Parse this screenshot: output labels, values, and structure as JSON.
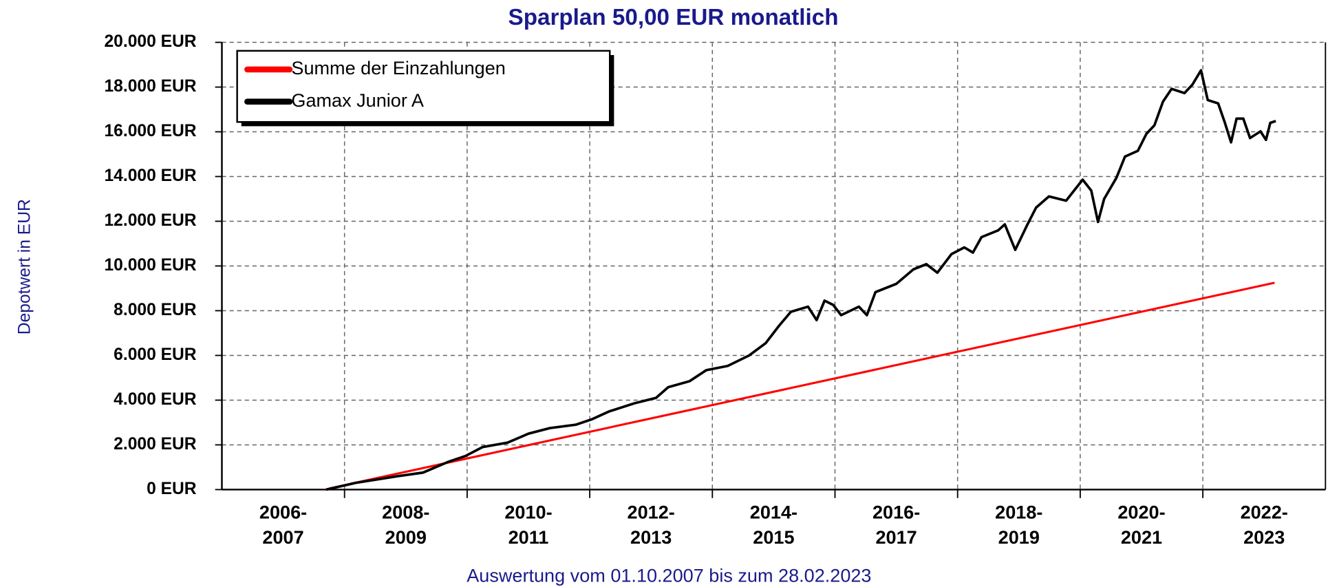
{
  "chart_data": {
    "type": "line",
    "title": "Sparplan 50,00 EUR monatlich",
    "ylabel": "Depotwert in EUR",
    "xlabel": "Auswertung vom 01.10.2007 bis zum 28.02.2023",
    "xlim": [
      2006,
      2024
    ],
    "ylim": [
      0,
      20000
    ],
    "yticks": [
      {
        "value": 0,
        "label": "0 EUR"
      },
      {
        "value": 2000,
        "label": "2.000 EUR"
      },
      {
        "value": 4000,
        "label": "4.000 EUR"
      },
      {
        "value": 6000,
        "label": "6.000 EUR"
      },
      {
        "value": 8000,
        "label": "8.000 EUR"
      },
      {
        "value": 10000,
        "label": "10.000 EUR"
      },
      {
        "value": 12000,
        "label": "12.000 EUR"
      },
      {
        "value": 14000,
        "label": "14.000 EUR"
      },
      {
        "value": 16000,
        "label": "16.000 EUR"
      },
      {
        "value": 18000,
        "label": "18.000 EUR"
      },
      {
        "value": 20000,
        "label": "20.000 EUR"
      }
    ],
    "xticks": [
      {
        "value": 2007,
        "label": "2006-\n2007"
      },
      {
        "value": 2009,
        "label": "2008-\n2009"
      },
      {
        "value": 2011,
        "label": "2010-\n2011"
      },
      {
        "value": 2013,
        "label": "2012-\n2013"
      },
      {
        "value": 2015,
        "label": "2014-\n2015"
      },
      {
        "value": 2017,
        "label": "2016-\n2017"
      },
      {
        "value": 2019,
        "label": "2018-\n2019"
      },
      {
        "value": 2021,
        "label": "2020-\n2021"
      },
      {
        "value": 2023,
        "label": "2022-\n2023"
      }
    ],
    "xgrid": [
      2008,
      2010,
      2012,
      2014,
      2016,
      2018,
      2020,
      2022
    ],
    "grid": true,
    "legend": "upper left",
    "series": [
      {
        "name": "Summe der Einzahlungen",
        "color": "#ff0000",
        "x": [
          2007.75,
          2023.17
        ],
        "values": [
          50,
          9250
        ]
      },
      {
        "name": "Gamax Junior A",
        "color": "#000000",
        "x": [
          2007.7,
          2008.18,
          2008.87,
          2009.28,
          2009.7,
          2009.97,
          2010.25,
          2010.66,
          2011.0,
          2011.35,
          2011.77,
          2012.04,
          2012.32,
          2012.73,
          2013.08,
          2013.28,
          2013.63,
          2013.9,
          2014.25,
          2014.6,
          2014.87,
          2015.08,
          2015.28,
          2015.56,
          2015.7,
          2015.83,
          2015.97,
          2016.1,
          2016.39,
          2016.52,
          2016.66,
          2017.0,
          2017.28,
          2017.49,
          2017.67,
          2017.9,
          2018.11,
          2018.25,
          2018.39,
          2018.66,
          2018.77,
          2018.94,
          2019.14,
          2019.28,
          2019.49,
          2019.77,
          2020.04,
          2020.18,
          2020.29,
          2020.39,
          2020.59,
          2020.73,
          2020.94,
          2021.08,
          2021.21,
          2021.35,
          2021.49,
          2021.7,
          2021.83,
          2021.97,
          2022.08,
          2022.25,
          2022.36,
          2022.46,
          2022.55,
          2022.66,
          2022.77,
          2022.94,
          2023.03,
          2023.1,
          2023.19
        ],
        "values": [
          0,
          300,
          600,
          760,
          1250,
          1500,
          1900,
          2100,
          2500,
          2750,
          2900,
          3150,
          3500,
          3860,
          4100,
          4580,
          4850,
          5340,
          5530,
          6000,
          6550,
          7300,
          7950,
          8180,
          7580,
          8450,
          8260,
          7800,
          8180,
          7800,
          8830,
          9200,
          9850,
          10080,
          9700,
          10530,
          10830,
          10600,
          11290,
          11590,
          11860,
          10720,
          11860,
          12610,
          13110,
          12920,
          13860,
          13370,
          11970,
          13000,
          13940,
          14890,
          15150,
          15910,
          16290,
          17350,
          17920,
          17730,
          18110,
          18750,
          17420,
          17270,
          16400,
          15530,
          16590,
          16590,
          15720,
          16020,
          15640,
          16400,
          16480
        ]
      }
    ]
  }
}
